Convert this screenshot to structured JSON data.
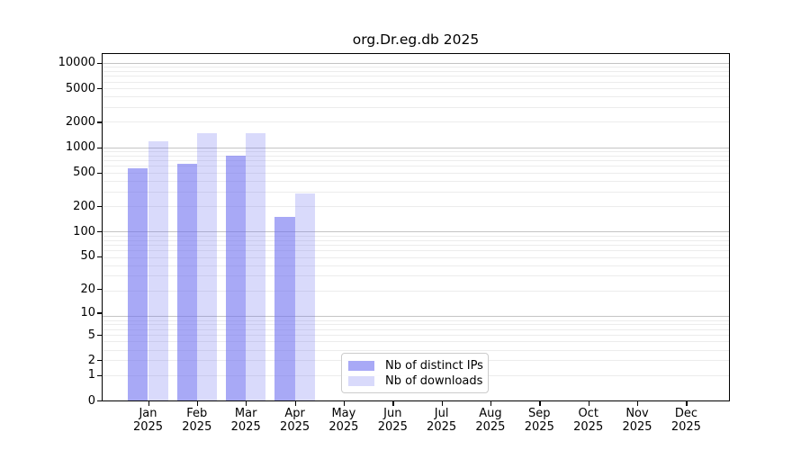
{
  "chart_data": {
    "type": "bar",
    "title": "org.Dr.eg.db 2025",
    "year": "2025",
    "categories": [
      "Jan",
      "Feb",
      "Mar",
      "Apr",
      "May",
      "Jun",
      "Jul",
      "Aug",
      "Sep",
      "Oct",
      "Nov",
      "Dec"
    ],
    "series": [
      {
        "name": "Nb of distinct IPs",
        "color": "rgba(110,112,240,0.60)",
        "values": [
          560,
          630,
          790,
          148,
          0,
          0,
          0,
          0,
          0,
          0,
          0,
          0
        ]
      },
      {
        "name": "Nb of downloads",
        "color": "rgba(110,112,240,0.26)",
        "values": [
          1170,
          1450,
          1450,
          283,
          0,
          0,
          0,
          0,
          0,
          0,
          0,
          0
        ]
      }
    ],
    "yscale": "log10(value+1)",
    "yticks": [
      0,
      1,
      2,
      5,
      10,
      20,
      50,
      100,
      200,
      500,
      1000,
      2000,
      5000,
      10000
    ],
    "ylim": [
      0,
      12800
    ],
    "grid": {
      "minor_color": "#ececec",
      "major_color": "#c4c4c4",
      "major_at": [
        10,
        100,
        1000,
        10000
      ]
    },
    "legend_position": "bottom-center",
    "xlabel": "",
    "ylabel": ""
  }
}
